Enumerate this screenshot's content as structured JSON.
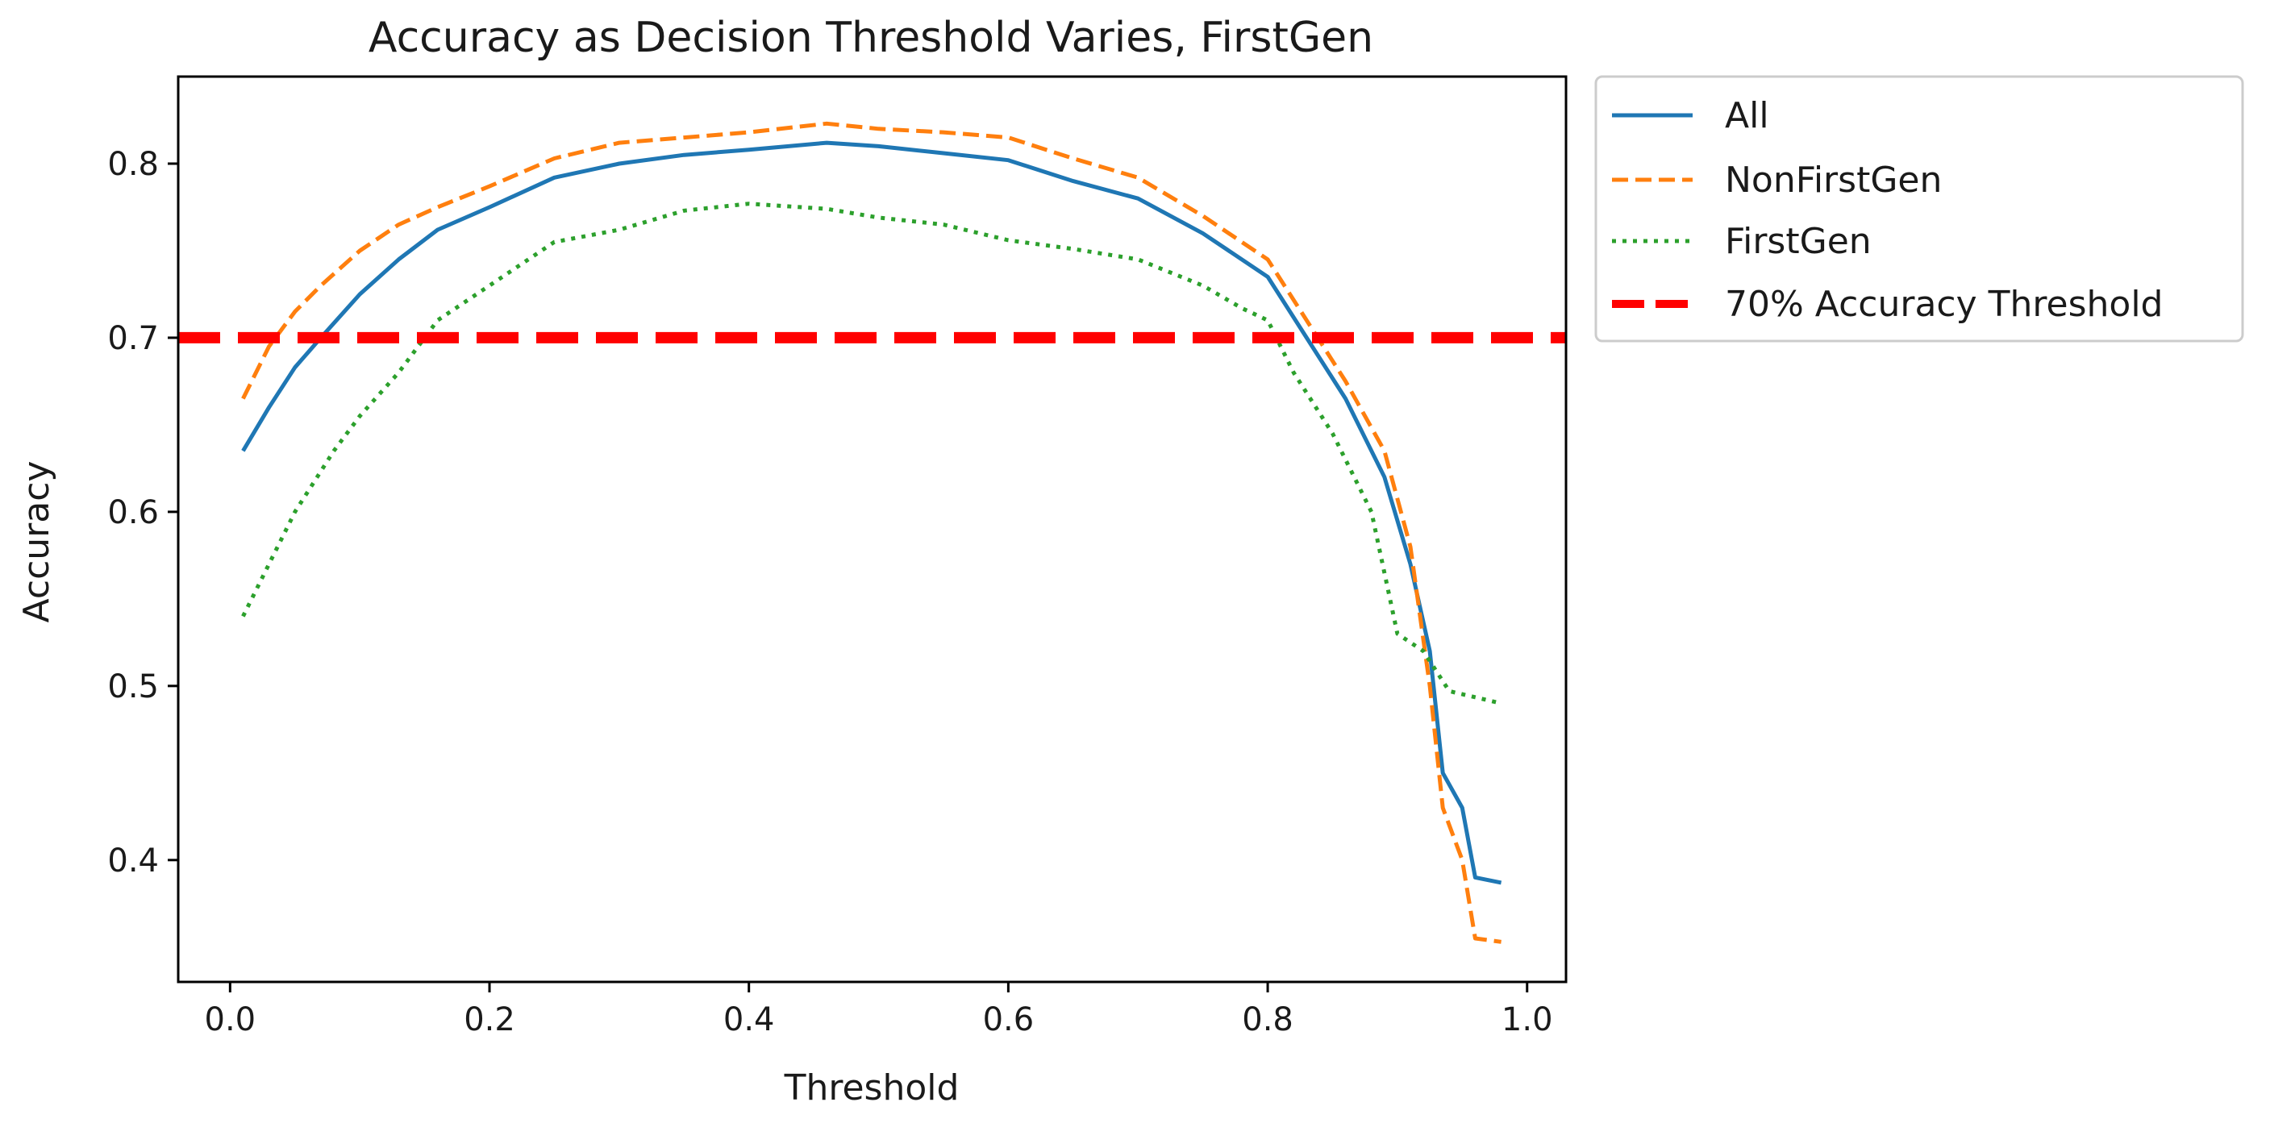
{
  "chart_data": {
    "type": "line",
    "title": "Accuracy as Decision Threshold Varies, FirstGen",
    "xlabel": "Threshold",
    "ylabel": "Accuracy",
    "xlim": [
      -0.04,
      1.03
    ],
    "ylim": [
      0.33,
      0.85
    ],
    "xticks": [
      0.0,
      0.2,
      0.4,
      0.6,
      0.8,
      1.0
    ],
    "xtick_labels": [
      "0.0",
      "0.2",
      "0.4",
      "0.6",
      "0.8",
      "1.0"
    ],
    "yticks": [
      0.4,
      0.5,
      0.6,
      0.7,
      0.8
    ],
    "ytick_labels": [
      "0.4",
      "0.5",
      "0.6",
      "0.7",
      "0.8"
    ],
    "grid": false,
    "legend_position": "outside-upper-right",
    "series": [
      {
        "name": "All",
        "color": "#1f77b4",
        "style": "solid",
        "x": [
          0.01,
          0.03,
          0.05,
          0.07,
          0.1,
          0.13,
          0.16,
          0.2,
          0.25,
          0.3,
          0.35,
          0.4,
          0.46,
          0.5,
          0.55,
          0.6,
          0.65,
          0.7,
          0.75,
          0.8,
          0.83,
          0.86,
          0.89,
          0.91,
          0.925,
          0.935,
          0.95,
          0.96,
          0.98
        ],
        "values": [
          0.635,
          0.66,
          0.683,
          0.7,
          0.725,
          0.745,
          0.762,
          0.775,
          0.792,
          0.8,
          0.805,
          0.808,
          0.812,
          0.81,
          0.806,
          0.802,
          0.79,
          0.78,
          0.76,
          0.735,
          0.7,
          0.665,
          0.62,
          0.57,
          0.52,
          0.45,
          0.43,
          0.39,
          0.387
        ]
      },
      {
        "name": "NonFirstGen",
        "color": "#ff7f0e",
        "style": "dashed",
        "x": [
          0.01,
          0.03,
          0.05,
          0.07,
          0.1,
          0.13,
          0.16,
          0.2,
          0.25,
          0.3,
          0.35,
          0.4,
          0.46,
          0.5,
          0.55,
          0.6,
          0.65,
          0.7,
          0.75,
          0.8,
          0.83,
          0.86,
          0.89,
          0.91,
          0.925,
          0.935,
          0.95,
          0.96,
          0.98
        ],
        "values": [
          0.665,
          0.695,
          0.715,
          0.73,
          0.75,
          0.765,
          0.775,
          0.787,
          0.803,
          0.812,
          0.815,
          0.818,
          0.823,
          0.82,
          0.818,
          0.815,
          0.803,
          0.792,
          0.77,
          0.745,
          0.71,
          0.675,
          0.635,
          0.58,
          0.5,
          0.43,
          0.4,
          0.355,
          0.353
        ]
      },
      {
        "name": "FirstGen",
        "color": "#2ca02c",
        "style": "dotted",
        "x": [
          0.01,
          0.03,
          0.05,
          0.08,
          0.1,
          0.13,
          0.16,
          0.2,
          0.25,
          0.3,
          0.35,
          0.4,
          0.46,
          0.5,
          0.55,
          0.6,
          0.65,
          0.7,
          0.75,
          0.78,
          0.8,
          0.82,
          0.85,
          0.88,
          0.9,
          0.92,
          0.94,
          0.98
        ],
        "values": [
          0.54,
          0.57,
          0.6,
          0.635,
          0.655,
          0.68,
          0.71,
          0.73,
          0.755,
          0.762,
          0.773,
          0.777,
          0.774,
          0.769,
          0.765,
          0.756,
          0.751,
          0.745,
          0.73,
          0.717,
          0.71,
          0.68,
          0.645,
          0.6,
          0.53,
          0.52,
          0.497,
          0.49
        ]
      },
      {
        "name": "70% Accuracy Threshold",
        "color": "#ff0000",
        "style": "dashed-thick",
        "x": [
          -0.04,
          1.03
        ],
        "values": [
          0.7,
          0.7
        ]
      }
    ]
  }
}
